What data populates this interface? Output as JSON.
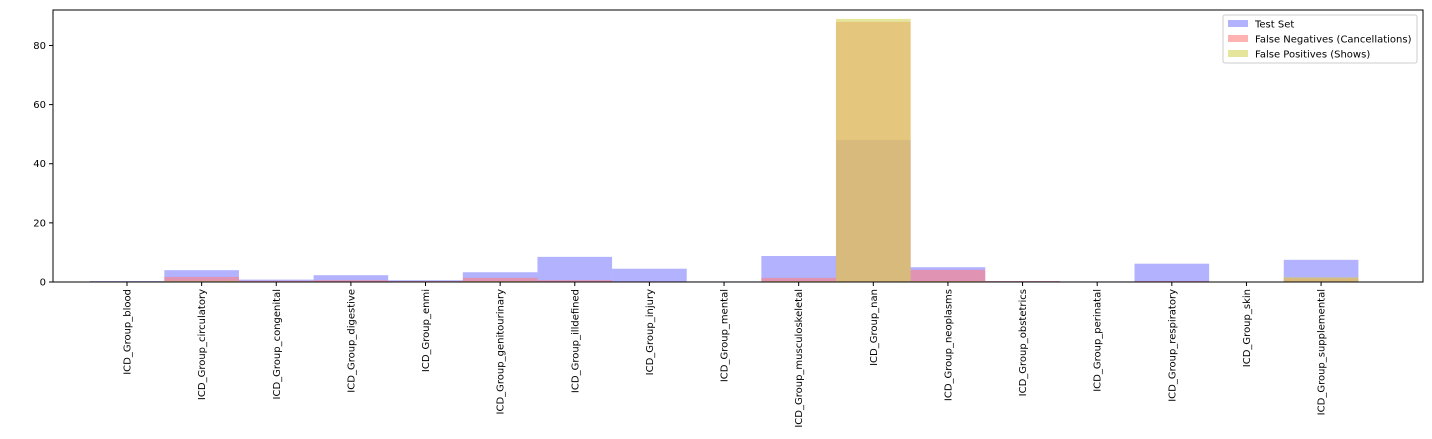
{
  "chart_data": {
    "type": "bar",
    "title": "",
    "xlabel": "",
    "ylabel": "",
    "ylim": [
      0,
      92
    ],
    "yticks": [
      0,
      20,
      40,
      60,
      80
    ],
    "grid": false,
    "legend_position": "top-right",
    "categories": [
      "ICD_Group_blood",
      "ICD_Group_circulatory",
      "ICD_Group_congenital",
      "ICD_Group_digestive",
      "ICD_Group_enmi",
      "ICD_Group_genitourinary",
      "ICD_Group_illdefined",
      "ICD_Group_injury",
      "ICD_Group_mental",
      "ICD_Group_musculoskeletal",
      "ICD_Group_nan",
      "ICD_Group_neoplasms",
      "ICD_Group_obstetrics",
      "ICD_Group_perinatal",
      "ICD_Group_respiratory",
      "ICD_Group_skin",
      "ICD_Group_supplemental"
    ],
    "series": [
      {
        "name": "Test Set",
        "color": "#7f7fff",
        "opacity": 0.6,
        "values": [
          0.3,
          4.0,
          0.8,
          2.3,
          0.6,
          3.3,
          8.5,
          4.5,
          0.2,
          8.8,
          48.0,
          5.0,
          0.3,
          0.2,
          6.2,
          0.1,
          7.5
        ]
      },
      {
        "name": "False Negatives (Cancellations)",
        "color": "#ff7f7f",
        "opacity": 0.6,
        "values": [
          0.2,
          1.7,
          0.4,
          0.6,
          0.3,
          1.4,
          0.6,
          0.2,
          0.1,
          1.4,
          88.0,
          4.1,
          0.3,
          0.1,
          0.3,
          0.0,
          1.3
        ]
      },
      {
        "name": "False Positives (Shows)",
        "color": "#d4d45a",
        "opacity": 0.6,
        "values": [
          0.0,
          0.4,
          0.1,
          0.0,
          0.1,
          0.3,
          0.1,
          0.0,
          0.0,
          0.3,
          89.0,
          0.3,
          0.1,
          0.0,
          0.0,
          0.0,
          1.6
        ]
      }
    ]
  }
}
